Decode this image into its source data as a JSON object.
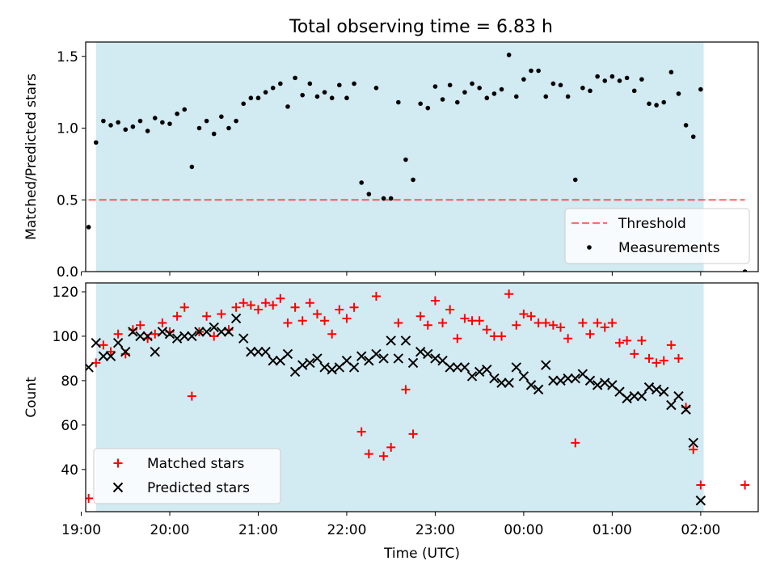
{
  "title": "Total observing time = 6.83 h",
  "colors": {
    "observing_span": "#add8e6",
    "threshold": "#ff0000",
    "measurements": "#000000",
    "matched": "#ff0000",
    "predicted": "#000000"
  },
  "chart_data": [
    {
      "type": "scatter",
      "ylabel": "Matched/Predicted stars",
      "xlabel": "",
      "xlim": [
        "19:03",
        "02:39"
      ],
      "ylim": [
        0,
        1.6
      ],
      "yticks": [
        "0.0",
        "0.5",
        "1.0",
        "1.5"
      ],
      "observing_span": [
        "19:10",
        "02:02"
      ],
      "threshold": {
        "name": "Threshold",
        "y": 0.5,
        "x_range": [
          "19:05",
          "02:30"
        ]
      },
      "legend": {
        "position": "lower right",
        "entries": [
          "Threshold",
          "Measurements"
        ]
      },
      "series": [
        {
          "name": "Measurements",
          "marker": "dot",
          "points": [
            [
              "19:05",
              0.31
            ],
            [
              "19:10",
              0.9
            ],
            [
              "19:15",
              1.05
            ],
            [
              "19:20",
              1.02
            ],
            [
              "19:25",
              1.04
            ],
            [
              "19:30",
              0.99
            ],
            [
              "19:35",
              1.01
            ],
            [
              "19:40",
              1.05
            ],
            [
              "19:45",
              0.98
            ],
            [
              "19:50",
              1.07
            ],
            [
              "19:55",
              1.04
            ],
            [
              "20:00",
              1.03
            ],
            [
              "20:05",
              1.1
            ],
            [
              "20:10",
              1.13
            ],
            [
              "20:15",
              0.73
            ],
            [
              "20:20",
              1.0
            ],
            [
              "20:25",
              1.05
            ],
            [
              "20:30",
              0.96
            ],
            [
              "20:35",
              1.08
            ],
            [
              "20:40",
              1.0
            ],
            [
              "20:45",
              1.05
            ],
            [
              "20:50",
              1.17
            ],
            [
              "20:55",
              1.21
            ],
            [
              "21:00",
              1.21
            ],
            [
              "21:05",
              1.25
            ],
            [
              "21:10",
              1.28
            ],
            [
              "21:15",
              1.31
            ],
            [
              "21:20",
              1.15
            ],
            [
              "21:25",
              1.35
            ],
            [
              "21:30",
              1.23
            ],
            [
              "21:35",
              1.31
            ],
            [
              "21:40",
              1.22
            ],
            [
              "21:45",
              1.25
            ],
            [
              "21:50",
              1.21
            ],
            [
              "21:55",
              1.3
            ],
            [
              "22:00",
              1.21
            ],
            [
              "22:05",
              1.31
            ],
            [
              "22:10",
              0.62
            ],
            [
              "22:15",
              0.54
            ],
            [
              "22:20",
              1.28
            ],
            [
              "22:25",
              0.51
            ],
            [
              "22:30",
              0.51
            ],
            [
              "22:35",
              1.18
            ],
            [
              "22:40",
              0.78
            ],
            [
              "22:45",
              0.64
            ],
            [
              "22:50",
              1.17
            ],
            [
              "22:55",
              1.14
            ],
            [
              "23:00",
              1.29
            ],
            [
              "23:05",
              1.2
            ],
            [
              "23:10",
              1.3
            ],
            [
              "23:15",
              1.18
            ],
            [
              "23:20",
              1.25
            ],
            [
              "23:25",
              1.31
            ],
            [
              "23:30",
              1.28
            ],
            [
              "23:35",
              1.21
            ],
            [
              "23:40",
              1.24
            ],
            [
              "23:45",
              1.27
            ],
            [
              "23:50",
              1.51
            ],
            [
              "23:55",
              1.22
            ],
            [
              "00:00",
              1.34
            ],
            [
              "00:05",
              1.4
            ],
            [
              "00:10",
              1.4
            ],
            [
              "00:15",
              1.22
            ],
            [
              "00:20",
              1.31
            ],
            [
              "00:25",
              1.3
            ],
            [
              "00:30",
              1.22
            ],
            [
              "00:35",
              0.64
            ],
            [
              "00:40",
              1.28
            ],
            [
              "00:45",
              1.26
            ],
            [
              "00:50",
              1.36
            ],
            [
              "00:55",
              1.33
            ],
            [
              "01:00",
              1.36
            ],
            [
              "01:05",
              1.33
            ],
            [
              "01:10",
              1.35
            ],
            [
              "01:15",
              1.26
            ],
            [
              "01:20",
              1.34
            ],
            [
              "01:25",
              1.17
            ],
            [
              "01:30",
              1.16
            ],
            [
              "01:35",
              1.18
            ],
            [
              "01:40",
              1.39
            ],
            [
              "01:45",
              1.24
            ],
            [
              "01:50",
              1.02
            ],
            [
              "01:55",
              0.94
            ],
            [
              "02:00",
              1.27
            ],
            [
              "02:30",
              0.0
            ]
          ]
        }
      ]
    },
    {
      "type": "scatter",
      "ylabel": "Count",
      "xlabel": "Time (UTC)",
      "xlim": [
        "19:03",
        "02:39"
      ],
      "ylim": [
        21,
        124
      ],
      "yticks": [
        "40",
        "60",
        "80",
        "100",
        "120"
      ],
      "xticks": [
        "19:00",
        "20:00",
        "21:00",
        "22:00",
        "23:00",
        "00:00",
        "01:00",
        "02:00"
      ],
      "observing_span": [
        "19:10",
        "02:02"
      ],
      "legend": {
        "position": "lower left",
        "entries": [
          "Matched stars",
          "Predicted stars"
        ]
      },
      "series": [
        {
          "name": "Matched stars",
          "marker": "plus",
          "points": [
            [
              "19:05",
              27
            ],
            [
              "19:10",
              88
            ],
            [
              "19:15",
              96
            ],
            [
              "19:20",
              93
            ],
            [
              "19:25",
              101
            ],
            [
              "19:30",
              92
            ],
            [
              "19:35",
              103
            ],
            [
              "19:40",
              105
            ],
            [
              "19:45",
              99
            ],
            [
              "19:50",
              101
            ],
            [
              "19:55",
              106
            ],
            [
              "20:00",
              102
            ],
            [
              "20:05",
              109
            ],
            [
              "20:10",
              113
            ],
            [
              "20:15",
              73
            ],
            [
              "20:20",
              102
            ],
            [
              "20:25",
              109
            ],
            [
              "20:30",
              100
            ],
            [
              "20:35",
              110
            ],
            [
              "20:40",
              103
            ],
            [
              "20:45",
              113
            ],
            [
              "20:50",
              115
            ],
            [
              "20:55",
              114
            ],
            [
              "21:00",
              112
            ],
            [
              "21:05",
              115
            ],
            [
              "21:10",
              114
            ],
            [
              "21:15",
              117
            ],
            [
              "21:20",
              106
            ],
            [
              "21:25",
              113
            ],
            [
              "21:30",
              107
            ],
            [
              "21:35",
              115
            ],
            [
              "21:40",
              110
            ],
            [
              "21:45",
              107
            ],
            [
              "21:50",
              101
            ],
            [
              "21:55",
              112
            ],
            [
              "22:00",
              108
            ],
            [
              "22:05",
              113
            ],
            [
              "22:10",
              57
            ],
            [
              "22:15",
              47
            ],
            [
              "22:20",
              118
            ],
            [
              "22:25",
              46
            ],
            [
              "22:30",
              50
            ],
            [
              "22:35",
              106
            ],
            [
              "22:40",
              76
            ],
            [
              "22:45",
              56
            ],
            [
              "22:50",
              109
            ],
            [
              "22:55",
              105
            ],
            [
              "23:00",
              116
            ],
            [
              "23:05",
              106
            ],
            [
              "23:10",
              112
            ],
            [
              "23:15",
              99
            ],
            [
              "23:20",
              108
            ],
            [
              "23:25",
              107
            ],
            [
              "23:30",
              107
            ],
            [
              "23:35",
              103
            ],
            [
              "23:40",
              100
            ],
            [
              "23:45",
              100
            ],
            [
              "23:50",
              119
            ],
            [
              "23:55",
              105
            ],
            [
              "00:00",
              110
            ],
            [
              "00:05",
              109
            ],
            [
              "00:10",
              106
            ],
            [
              "00:15",
              106
            ],
            [
              "00:20",
              105
            ],
            [
              "00:25",
              104
            ],
            [
              "00:30",
              99
            ],
            [
              "00:35",
              52
            ],
            [
              "00:40",
              106
            ],
            [
              "00:45",
              101
            ],
            [
              "00:50",
              106
            ],
            [
              "00:55",
              104
            ],
            [
              "01:00",
              106
            ],
            [
              "01:05",
              97
            ],
            [
              "01:10",
              98
            ],
            [
              "01:15",
              92
            ],
            [
              "01:20",
              98
            ],
            [
              "01:25",
              90
            ],
            [
              "01:30",
              88
            ],
            [
              "01:35",
              89
            ],
            [
              "01:40",
              96
            ],
            [
              "01:45",
              90
            ],
            [
              "01:50",
              68
            ],
            [
              "01:55",
              49
            ],
            [
              "02:00",
              33
            ],
            [
              "02:30",
              33
            ]
          ]
        },
        {
          "name": "Predicted stars",
          "marker": "x",
          "points": [
            [
              "19:05",
              86
            ],
            [
              "19:10",
              97
            ],
            [
              "19:15",
              91
            ],
            [
              "19:20",
              91
            ],
            [
              "19:25",
              97
            ],
            [
              "19:30",
              93
            ],
            [
              "19:35",
              102
            ],
            [
              "19:40",
              100
            ],
            [
              "19:45",
              100
            ],
            [
              "19:50",
              93
            ],
            [
              "19:55",
              102
            ],
            [
              "20:00",
              101
            ],
            [
              "20:05",
              99
            ],
            [
              "20:10",
              100
            ],
            [
              "20:15",
              100
            ],
            [
              "20:20",
              102
            ],
            [
              "20:25",
              102
            ],
            [
              "20:30",
              104
            ],
            [
              "20:35",
              102
            ],
            [
              "20:40",
              102
            ],
            [
              "20:45",
              108
            ],
            [
              "20:50",
              99
            ],
            [
              "20:55",
              93
            ],
            [
              "21:00",
              93
            ],
            [
              "21:05",
              93
            ],
            [
              "21:10",
              89
            ],
            [
              "21:15",
              89
            ],
            [
              "21:20",
              92
            ],
            [
              "21:25",
              84
            ],
            [
              "21:30",
              87
            ],
            [
              "21:35",
              88
            ],
            [
              "21:40",
              90
            ],
            [
              "21:45",
              86
            ],
            [
              "21:50",
              85
            ],
            [
              "21:55",
              86
            ],
            [
              "22:00",
              89
            ],
            [
              "22:05",
              86
            ],
            [
              "22:10",
              91
            ],
            [
              "22:15",
              89
            ],
            [
              "22:20",
              92
            ],
            [
              "22:25",
              90
            ],
            [
              "22:30",
              98
            ],
            [
              "22:35",
              90
            ],
            [
              "22:40",
              98
            ],
            [
              "22:45",
              88
            ],
            [
              "22:50",
              93
            ],
            [
              "22:55",
              92
            ],
            [
              "23:00",
              90
            ],
            [
              "23:05",
              89
            ],
            [
              "23:10",
              86
            ],
            [
              "23:15",
              86
            ],
            [
              "23:20",
              86
            ],
            [
              "23:25",
              82
            ],
            [
              "23:30",
              84
            ],
            [
              "23:35",
              85
            ],
            [
              "23:40",
              81
            ],
            [
              "23:45",
              79
            ],
            [
              "23:50",
              79
            ],
            [
              "23:55",
              86
            ],
            [
              "00:00",
              82
            ],
            [
              "00:05",
              78
            ],
            [
              "00:10",
              76
            ],
            [
              "00:15",
              87
            ],
            [
              "00:20",
              80
            ],
            [
              "00:25",
              80
            ],
            [
              "00:30",
              81
            ],
            [
              "00:35",
              81
            ],
            [
              "00:40",
              83
            ],
            [
              "00:45",
              80
            ],
            [
              "00:50",
              78
            ],
            [
              "00:55",
              79
            ],
            [
              "01:00",
              78
            ],
            [
              "01:05",
              75
            ],
            [
              "01:10",
              72
            ],
            [
              "01:15",
              73
            ],
            [
              "01:20",
              73
            ],
            [
              "01:25",
              77
            ],
            [
              "01:30",
              76
            ],
            [
              "01:35",
              75
            ],
            [
              "01:40",
              69
            ],
            [
              "01:45",
              73
            ],
            [
              "01:50",
              67
            ],
            [
              "01:55",
              52
            ],
            [
              "02:00",
              26
            ]
          ]
        }
      ]
    }
  ]
}
